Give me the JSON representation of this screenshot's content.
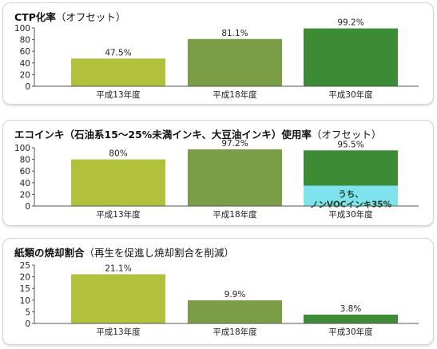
{
  "chart_data": [
    {
      "type": "bar",
      "title": "CTP化率",
      "subtitle": "（オフセット）",
      "categories": [
        "平成13年度",
        "平成18年度",
        "平成30年度"
      ],
      "values": [
        47.5,
        81.1,
        99.2
      ],
      "value_labels": [
        "47.5%",
        "81.1%",
        "99.2%"
      ],
      "colors": [
        "#b2c13c",
        "#7a9e45",
        "#3d8b34"
      ],
      "ylim": [
        0,
        100
      ],
      "yticks": [
        0,
        20,
        40,
        60,
        80,
        100
      ]
    },
    {
      "type": "bar",
      "title": "エコインキ（石油系15〜25%未満インキ、大豆油インキ）使用率",
      "subtitle": "（オフセット）",
      "categories": [
        "平成13年度",
        "平成18年度",
        "平成30年度"
      ],
      "values": [
        80,
        97.2,
        95.5
      ],
      "value_labels": [
        "80%",
        "97.2%",
        "95.5%"
      ],
      "colors": [
        "#b2c13c",
        "#7a9e45",
        "#3d8b34"
      ],
      "ylim": [
        0,
        100
      ],
      "yticks": [
        0,
        20,
        40,
        60,
        80,
        100
      ],
      "subsegment": {
        "category_index": 2,
        "value": 35,
        "color": "#7fe3ee",
        "label_lines": [
          "うち、",
          "ノンVOCインキ35%"
        ]
      }
    },
    {
      "type": "bar",
      "title": "紙類の焼却割合",
      "subtitle": "（再生を促進し焼却割合を削減）",
      "categories": [
        "平成13年度",
        "平成18年度",
        "平成30年度"
      ],
      "values": [
        21.1,
        9.9,
        3.8
      ],
      "value_labels": [
        "21.1%",
        "9.9%",
        "3.8%"
      ],
      "colors": [
        "#b2c13c",
        "#7a9e45",
        "#3d8b34"
      ],
      "ylim": [
        0,
        25
      ],
      "yticks": [
        0,
        5,
        10,
        15,
        20,
        25
      ]
    }
  ]
}
